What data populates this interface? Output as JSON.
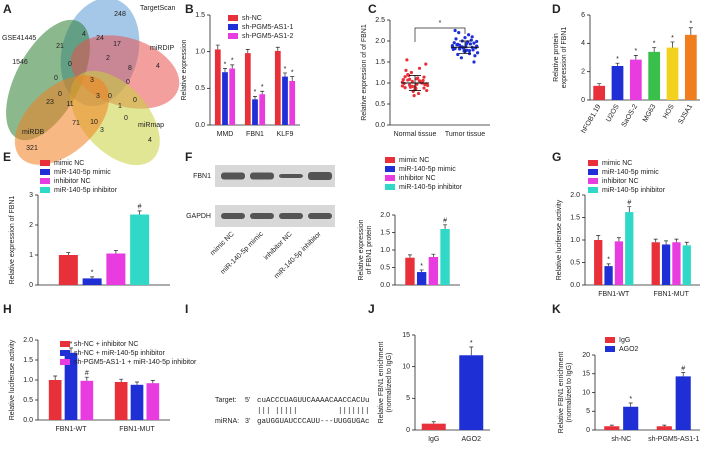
{
  "chart_data": [
    {
      "type": "venn",
      "panel": "A",
      "sets": [
        {
          "name": "TargetScan",
          "color": "#5b9bd5"
        },
        {
          "name": "GSE41445",
          "color": "#2e7d32"
        },
        {
          "name": "miRDIP",
          "color": "#e8504f"
        },
        {
          "name": "miRDB",
          "color": "#c8d23c"
        },
        {
          "name": "miRmap",
          "color": "#f07d1e"
        }
      ],
      "counts": [
        248,
        1546,
        4,
        321,
        4,
        4,
        24,
        17,
        21,
        0,
        2,
        8,
        0,
        3,
        0,
        0,
        23,
        11,
        0,
        3,
        0,
        1,
        71,
        10,
        3,
        0
      ]
    },
    {
      "type": "bar",
      "panel": "B",
      "ylabel": "Relative expression",
      "categories": [
        "MMD",
        "FBN1",
        "KLF9"
      ],
      "series": [
        {
          "name": "sh-NC",
          "color": "#e8303a",
          "values": [
            1.03,
            0.98,
            1.01
          ],
          "errors": [
            0.06,
            0.05,
            0.05
          ],
          "annotations": [
            null,
            null,
            null
          ]
        },
        {
          "name": "sh-PGM5-AS1-1",
          "color": "#1f2fd6",
          "values": [
            0.72,
            0.35,
            0.66
          ],
          "errors": [
            0.05,
            0.04,
            0.05
          ],
          "annotations": [
            "*",
            "*",
            "*"
          ]
        },
        {
          "name": "sh-PGM5-AS1-2",
          "color": "#e83ce0",
          "values": [
            0.77,
            0.42,
            0.6
          ],
          "errors": [
            0.05,
            0.04,
            0.06
          ],
          "annotations": [
            "*",
            "*",
            "*"
          ]
        }
      ],
      "ylim": [
        0,
        1.5
      ],
      "yticks": [
        {
          "value": 0,
          "label": "0.0"
        },
        0.5,
        {
          "value": 1,
          "label": "1.0"
        },
        1.5
      ]
    },
    {
      "type": "dotplot",
      "panel": "C",
      "ylabel": "Relative expression of of FBN1",
      "categories": [
        "Normal tissue",
        "Tumor tissue"
      ],
      "colors": [
        "#e8303a",
        "#1f2fd6"
      ],
      "groups": [
        [
          1.02,
          0.95,
          1.1,
          0.88,
          1.15,
          0.92,
          1.05,
          0.98,
          1.2,
          0.85,
          1.0,
          1.08,
          0.9,
          1.12,
          0.96,
          1.3,
          0.8,
          1.03,
          0.94,
          1.18,
          0.87,
          1.06,
          0.99,
          1.25,
          0.75,
          1.45,
          1.55,
          0.7,
          1.01,
          0.93,
          1.09,
          0.97,
          1.14,
          0.89,
          1.04,
          1.35,
          0.82,
          1.07,
          0.91,
          1.0
        ],
        [
          1.85,
          1.9,
          1.78,
          1.95,
          1.82,
          2.0,
          1.7,
          1.88,
          1.92,
          1.75,
          2.1,
          1.8,
          1.86,
          1.98,
          1.65,
          2.05,
          1.83,
          1.93,
          1.72,
          2.2,
          1.87,
          1.79,
          1.96,
          1.6,
          2.15,
          1.84,
          1.91,
          1.76,
          2.02,
          1.89,
          1.81,
          1.94,
          1.5,
          2.25,
          1.86,
          1.77,
          1.99,
          1.68,
          2.08,
          1.85
        ]
      ],
      "means": [
        1.0,
        1.85
      ],
      "sd": [
        0.18,
        0.15
      ],
      "significance": "*",
      "ylim": [
        0,
        2.5
      ],
      "yticks": [
        {
          "value": 0,
          "label": "0.0"
        },
        0.5,
        {
          "value": 1,
          "label": "1.0"
        },
        1.5,
        {
          "value": 2,
          "label": "2.0"
        },
        2.5
      ]
    },
    {
      "type": "bar",
      "panel": "D",
      "ylabel": [
        "Relative protein",
        "expression of FBN1"
      ],
      "categories": [
        "hFOB1.19",
        "U2OS",
        "SaOS-2",
        "MG63",
        "HOS",
        "SJSA1"
      ],
      "values": [
        1.0,
        2.4,
        2.85,
        3.4,
        3.7,
        4.6
      ],
      "errors": [
        0.15,
        0.2,
        0.3,
        0.3,
        0.4,
        0.5
      ],
      "colors": [
        "#e8303a",
        "#1f2fd6",
        "#e83ce0",
        "#39c04a",
        "#f2d21e",
        "#f07d1e"
      ],
      "annotations": [
        null,
        "*",
        "*",
        "*",
        "*",
        "*"
      ],
      "ylim": [
        0,
        6
      ],
      "yticks": [
        0,
        2,
        4,
        6
      ]
    },
    {
      "type": "bar",
      "panel": "E",
      "ylabel": "Relative expression of FBN1",
      "categories": [
        null
      ],
      "series": [
        {
          "name": "mimic NC",
          "color": "#e8303a",
          "values": [
            1.0
          ],
          "errors": [
            0.08
          ],
          "annotations": [
            null
          ]
        },
        {
          "name": "miR-140-5p mimic",
          "color": "#1f2fd6",
          "values": [
            0.22
          ],
          "errors": [
            0.05
          ],
          "annotations": [
            "*"
          ]
        },
        {
          "name": "inhibitor NC",
          "color": "#e83ce0",
          "values": [
            1.05
          ],
          "errors": [
            0.1
          ],
          "annotations": [
            null
          ]
        },
        {
          "name": "miR-140-5p inhibitor",
          "color": "#30d8c8",
          "values": [
            2.35
          ],
          "errors": [
            0.12
          ],
          "annotations": [
            "#"
          ]
        }
      ],
      "ylim": [
        0,
        3
      ],
      "yticks": [
        0,
        1,
        2,
        3
      ]
    },
    {
      "type": "bar",
      "panel": "F",
      "ylabel": [
        "Relative expression",
        "of FBN1 protein"
      ],
      "blot": [
        "FBN1",
        "GAPDH"
      ],
      "categories": [
        null
      ],
      "series": [
        {
          "name": "mimic NC",
          "color": "#e8303a",
          "values": [
            0.78
          ],
          "errors": [
            0.08
          ],
          "annotations": [
            null
          ]
        },
        {
          "name": "miR-140-5p mimic",
          "color": "#1f2fd6",
          "values": [
            0.37
          ],
          "errors": [
            0.06
          ],
          "annotations": [
            "*"
          ]
        },
        {
          "name": "inhibitor NC",
          "color": "#e83ce0",
          "values": [
            0.8
          ],
          "errors": [
            0.08
          ],
          "annotations": [
            null
          ]
        },
        {
          "name": "miR-140-5p inhibitor",
          "color": "#30d8c8",
          "values": [
            1.6
          ],
          "errors": [
            0.12
          ],
          "annotations": [
            "#"
          ]
        }
      ],
      "ylim": [
        0,
        2
      ],
      "yticks": [
        {
          "value": 0,
          "label": "0.0"
        },
        0.5,
        {
          "value": 1,
          "label": "1.0"
        },
        1.5,
        {
          "value": 2,
          "label": "2.0"
        }
      ]
    },
    {
      "type": "bar",
      "panel": "G",
      "ylabel": "Relative luciferase activity",
      "categories": [
        "FBN1-WT",
        "FBN1-MUT"
      ],
      "series": [
        {
          "name": "mimic NC",
          "color": "#e8303a",
          "values": [
            1.0,
            0.95
          ],
          "errors": [
            0.1,
            0.07
          ],
          "annotations": [
            null,
            null
          ]
        },
        {
          "name": "miR-140-5p mimic",
          "color": "#1f2fd6",
          "values": [
            0.42,
            0.9
          ],
          "errors": [
            0.05,
            0.08
          ],
          "annotations": [
            "*",
            null
          ]
        },
        {
          "name": "inhibitor NC",
          "color": "#e83ce0",
          "values": [
            0.97,
            0.95
          ],
          "errors": [
            0.08,
            0.07
          ],
          "annotations": [
            null,
            null
          ]
        },
        {
          "name": "miR-140-5p inhibitor",
          "color": "#30d8c8",
          "values": [
            1.62,
            0.88
          ],
          "errors": [
            0.12,
            0.07
          ],
          "annotations": [
            "#",
            null
          ]
        }
      ],
      "ylim": [
        0,
        2
      ],
      "yticks": [
        {
          "value": 0,
          "label": "0.0"
        },
        0.5,
        {
          "value": 1,
          "label": "1.0"
        },
        1.5,
        {
          "value": 2,
          "label": "2.0"
        }
      ]
    },
    {
      "type": "bar",
      "panel": "H",
      "ylabel": "Relative luciferase activity",
      "categories": [
        "FBN1-WT",
        "FBN1-MUT"
      ],
      "series": [
        {
          "name": "sh-NC + inhibitor NC",
          "color": "#e8303a",
          "values": [
            1.0,
            0.95
          ],
          "errors": [
            0.1,
            0.07
          ],
          "annotations": [
            null,
            null
          ]
        },
        {
          "name": "sh-NC + miR-140-5p inhibitor",
          "color": "#1f2fd6",
          "values": [
            1.68,
            0.88
          ],
          "errors": [
            0.12,
            0.07
          ],
          "annotations": [
            "*",
            null
          ]
        },
        {
          "name": "sh-PGM5-AS1-1 + miR-140-5p inhibitor",
          "color": "#e83ce0",
          "values": [
            0.98,
            0.92
          ],
          "errors": [
            0.09,
            0.07
          ],
          "annotations": [
            "#",
            null
          ]
        }
      ],
      "ylim": [
        0,
        2
      ],
      "yticks": [
        {
          "value": 0,
          "label": "0.0"
        },
        0.5,
        {
          "value": 1,
          "label": "1.0"
        },
        1.5,
        {
          "value": 2,
          "label": "2.0"
        }
      ]
    },
    {
      "type": "sequence",
      "panel": "I",
      "target": {
        "label": "Target:",
        "end": "5'",
        "seq": "cuACCCUAGUUCAAAACAACCACUu"
      },
      "pairing": "||| |||||         |||||||",
      "mirna": {
        "label": "miRNA:",
        "end": "3'",
        "seq": "gaUGGUAUCCCAUU---UUGGUGAc"
      }
    },
    {
      "type": "bar",
      "panel": "J",
      "ylabel": [
        "Relative FBN1 enrichment",
        "(normalized to IgG)"
      ],
      "categories": [
        "IgG",
        "AGO2"
      ],
      "values": [
        1.0,
        11.8
      ],
      "errors": [
        0.3,
        1.3
      ],
      "colors": [
        "#e8303a",
        "#1f2fd6"
      ],
      "annotations": [
        null,
        "*"
      ],
      "ylim": [
        0,
        15
      ],
      "yticks": [
        0,
        5,
        10,
        15
      ]
    },
    {
      "type": "bar",
      "panel": "K",
      "ylabel": [
        "Relative FBN1 enrichment",
        "(normalized to IgG)"
      ],
      "categories": [
        "sh-NC",
        "sh-PGM5-AS1-1"
      ],
      "series": [
        {
          "name": "IgG",
          "color": "#e8303a",
          "values": [
            1.0,
            1.0
          ],
          "errors": [
            0.3,
            0.3
          ],
          "annotations": [
            null,
            null
          ]
        },
        {
          "name": "AGO2",
          "color": "#1f2fd6",
          "values": [
            6.2,
            14.3
          ],
          "errors": [
            1.0,
            1.0
          ],
          "annotations": [
            "*",
            "#"
          ]
        }
      ],
      "ylim": [
        0,
        20
      ],
      "yticks": [
        0,
        5,
        10,
        15,
        20
      ]
    }
  ]
}
